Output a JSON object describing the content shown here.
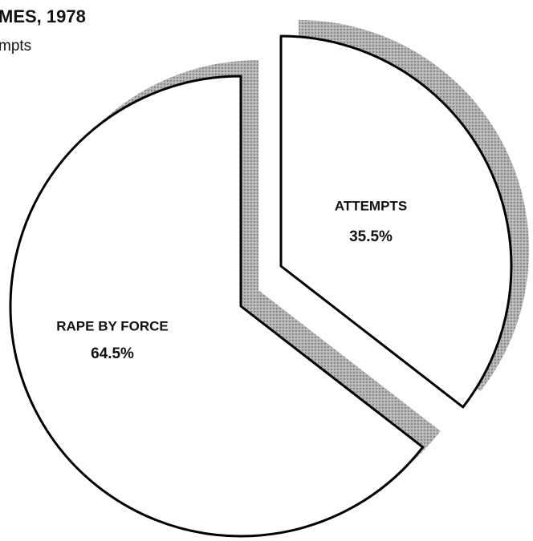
{
  "chart_data": {
    "type": "pie",
    "title": "MES, 1978",
    "subtitle": "mpts",
    "categories": [
      "RAPE BY FORCE",
      "ATTEMPTS"
    ],
    "values": [
      64.5,
      35.5
    ],
    "value_labels": [
      "64.5%",
      "35.5%"
    ],
    "colors": [
      "#ffffff",
      "#ffffff"
    ]
  }
}
